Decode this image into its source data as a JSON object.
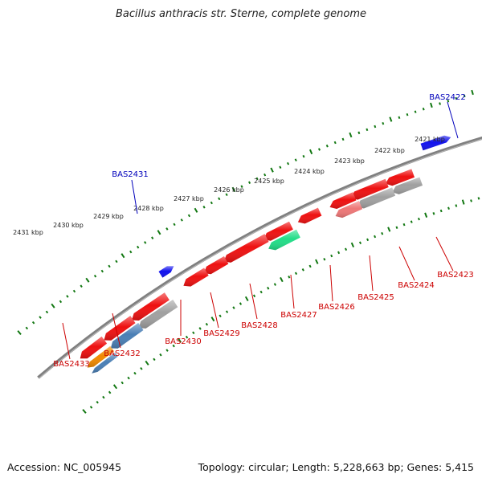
{
  "title": "Bacillus anthracis str. Sterne, complete genome",
  "footer": {
    "accession": "Accession: NC_005945",
    "summary": "Topology: circular; Length: 5,228,663 bp; Genes: 5,415"
  },
  "ruler": {
    "ticks": [
      "2421 kbp",
      "2422 kbp",
      "2423 kbp",
      "2424 kbp",
      "2425 kbp",
      "2426 kbp",
      "2427 kbp",
      "2428 kbp",
      "2429 kbp",
      "2430 kbp",
      "2431 kbp"
    ]
  },
  "colors": {
    "red": "#ee1111",
    "pink": "#ee7777",
    "gray": "#a0a0a0",
    "green": "#22dd88",
    "blue": "#1111ee",
    "steel": "#4a7fb5",
    "orange": "#f08a00",
    "backbone": "#808080",
    "ruler": "#117711",
    "label_red": "#cc0000",
    "label_blue": "#0000bb"
  },
  "genes": [
    {
      "label": "BAS2422",
      "label_color": "blue"
    },
    {
      "label": "BAS2423",
      "label_color": "red"
    },
    {
      "label": "BAS2424",
      "label_color": "red"
    },
    {
      "label": "BAS2425",
      "label_color": "red"
    },
    {
      "label": "BAS2426",
      "label_color": "red"
    },
    {
      "label": "BAS2427",
      "label_color": "red"
    },
    {
      "label": "BAS2428",
      "label_color": "red"
    },
    {
      "label": "BAS2429",
      "label_color": "red"
    },
    {
      "label": "BAS2430",
      "label_color": "red"
    },
    {
      "label": "BAS2431",
      "label_color": "blue"
    },
    {
      "label": "BAS2432",
      "label_color": "red"
    },
    {
      "label": "BAS2433",
      "label_color": "red"
    }
  ]
}
